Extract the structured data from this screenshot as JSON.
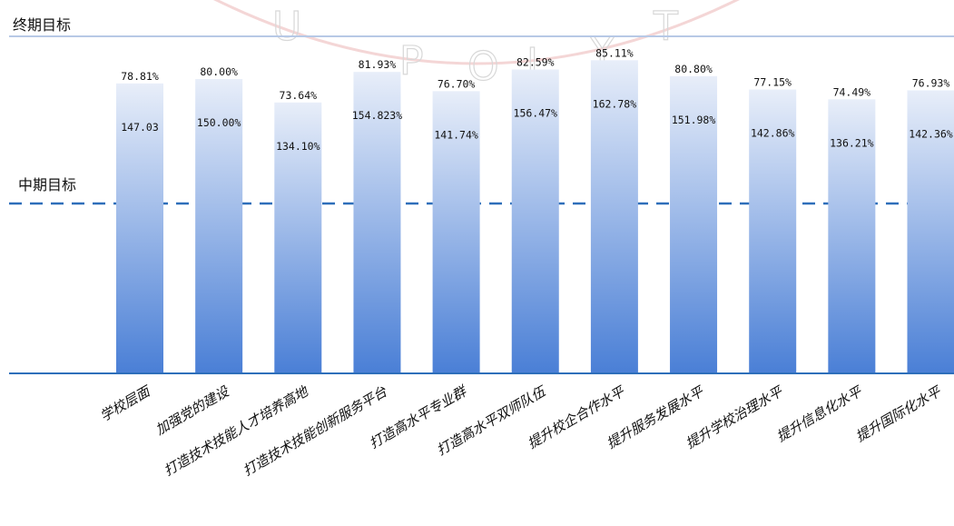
{
  "chart_data": {
    "type": "bar",
    "reference_lines": {
      "final_target": "终期目标",
      "mid_target": "中期目标"
    },
    "categories": [
      "学校层面",
      "加强党的建设",
      "打造技术技能人才培养高地",
      "打造技术技能创新服务平台",
      "打造高水平专业群",
      "打造高水平双师队伍",
      "提升校企合作水平",
      "提升服务发展水平",
      "提升学校治理水平",
      "提升信息化水平",
      "提升国际化水平"
    ],
    "series": [
      {
        "values": [
          78.81,
          80.0,
          73.64,
          81.93,
          76.7,
          82.59,
          85.11,
          80.8,
          77.15,
          74.49,
          76.93
        ],
        "labels": [
          "78.81%",
          "80.00%",
          "73.64%",
          "81.93%",
          "76.70%",
          "82.59%",
          "85.11%",
          "80.80%",
          "77.15%",
          "74.49%",
          "76.93%"
        ]
      },
      {
        "values": [
          147.03,
          150.0,
          134.1,
          154.823,
          141.74,
          156.47,
          162.78,
          151.98,
          142.86,
          136.21,
          142.36
        ],
        "labels": [
          "147.03",
          "150.00%",
          "134.10%",
          "154.823%",
          "141.74%",
          "156.47%",
          "162.78%",
          "151.98%",
          "142.86%",
          "136.21%",
          "142.36%"
        ]
      }
    ],
    "bar_gradient": [
      "#e8eef9",
      "#4a7fd6"
    ],
    "line_color": "#2e6fba"
  },
  "watermark": [
    "U",
    "P",
    "O",
    "L",
    "Y",
    "T"
  ]
}
